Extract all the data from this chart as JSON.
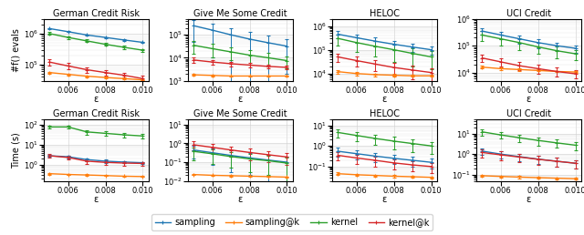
{
  "titles_row1": [
    "German Credit Risk",
    "Give Me Some Credit",
    "HELOC",
    "UCI Credit"
  ],
  "titles_row2": [
    "German Credit Risk",
    "Give Me Some Credit",
    "HELOC",
    "UCI Credit"
  ],
  "ylabel_row1": "#f() evals",
  "ylabel_row2": "Time (s)",
  "xlabel": "ε",
  "x_vals": [
    0.005,
    0.006,
    0.007,
    0.008,
    0.009,
    0.01
  ],
  "x_lim": [
    0.0047,
    0.0103
  ],
  "x_ticks": [
    0.006,
    0.008,
    0.01
  ],
  "colors": {
    "sampling": "#1f77b4",
    "sampling@k": "#ff7f0e",
    "kernel": "#2ca02c",
    "kernel@k": "#d62728"
  },
  "legend_labels": [
    "sampling",
    "sampling@k",
    "kernel",
    "kernel@k"
  ],
  "row1": {
    "GermanCreditRisk": {
      "ylim": [
        30000.0,
        3000000.0
      ],
      "sampling": {
        "y": [
          1450000.0,
          1150000.0,
          900000.0,
          750000.0,
          620000.0,
          520000.0
        ],
        "yerr": [
          60000.0,
          50000.0,
          40000.0,
          30000.0,
          25000.0,
          20000.0
        ]
      },
      "sampling@k": {
        "y": [
          55000.0,
          48000.0,
          42000.0,
          38000.0,
          35000.0,
          32000.0
        ],
        "yerr": [
          4000.0,
          3000.0,
          2500.0,
          2000.0,
          2000.0,
          1500.0
        ]
      },
      "kernel": {
        "y": [
          1000000.0,
          750000.0,
          580000.0,
          450000.0,
          360000.0,
          290000.0
        ],
        "yerr": [
          100000.0,
          80000.0,
          60000.0,
          50000.0,
          40000.0,
          30000.0
        ]
      },
      "kernel@k": {
        "y": [
          120000.0,
          90000.0,
          68000.0,
          55000.0,
          45000.0,
          35000.0
        ],
        "yerr": [
          30000.0,
          20000.0,
          15000.0,
          12000.0,
          10000.0,
          8000.0
        ]
      }
    },
    "GiveMeSomeCredit": {
      "ylim": [
        1000.0,
        500000.0
      ],
      "sampling": {
        "y": [
          250000.0,
          160000.0,
          100000.0,
          65000.0,
          45000.0,
          32000.0
        ],
        "yerr": [
          200000.0,
          150000.0,
          100000.0,
          70000.0,
          50000.0,
          30000.0
        ]
      },
      "sampling@k": {
        "y": [
          1800.0,
          1700.0,
          1600.0,
          1600.0,
          1600.0,
          1600.0
        ],
        "yerr": [
          200.0,
          150.0,
          100.0,
          100.0,
          100.0,
          100.0
        ]
      },
      "kernel": {
        "y": [
          35000.0,
          25000.0,
          18000.0,
          13000.0,
          10000.0,
          7500.0
        ],
        "yerr": [
          20000.0,
          15000.0,
          10000.0,
          8000.0,
          6000.0,
          4000.0
        ]
      },
      "kernel@k": {
        "y": [
          8000.0,
          6500.0,
          5500.0,
          4800.0,
          4200.0,
          3800.0
        ],
        "yerr": [
          2000.0,
          1500.0,
          1200.0,
          1000.0,
          800.0,
          700.0
        ]
      }
    },
    "HELOC": {
      "ylim": [
        5000.0,
        2000000.0
      ],
      "sampling": {
        "y": [
          450000.0,
          320000.0,
          230000.0,
          170000.0,
          130000.0,
          100000.0
        ],
        "yerr": [
          150000.0,
          120000.0,
          90000.0,
          70000.0,
          50000.0,
          40000.0
        ]
      },
      "sampling@k": {
        "y": [
          12000.0,
          10000.0,
          9000.0,
          8500.0,
          8000.0,
          8000.0
        ],
        "yerr": [
          2000.0,
          1500.0,
          1200.0,
          1000.0,
          800.0,
          800.0
        ]
      },
      "kernel": {
        "y": [
          300000.0,
          200000.0,
          140000.0,
          100000.0,
          70000.0,
          50000.0
        ],
        "yerr": [
          150000.0,
          120000.0,
          90000.0,
          70000.0,
          50000.0,
          35000.0
        ]
      },
      "kernel@k": {
        "y": [
          50000.0,
          35000.0,
          25000.0,
          18000.0,
          14000.0,
          11000.0
        ],
        "yerr": [
          20000.0,
          15000.0,
          12000.0,
          10000.0,
          8000.0,
          6000.0
        ]
      }
    },
    "UCICredit": {
      "ylim": [
        5000.0,
        1000000.0
      ],
      "sampling": {
        "y": [
          350000.0,
          250000.0,
          180000.0,
          130000.0,
          100000.0,
          80000.0
        ],
        "yerr": [
          100000.0,
          80000.0,
          60000.0,
          50000.0,
          30000.0,
          25000.0
        ]
      },
      "sampling@k": {
        "y": [
          16000.0,
          14000.0,
          13000.0,
          12000.0,
          11000.0,
          10500.0
        ],
        "yerr": [
          2000.0,
          1500.0,
          1200.0,
          1000.0,
          800.0,
          700.0
        ]
      },
      "kernel": {
        "y": [
          250000.0,
          180000.0,
          130000.0,
          90000.0,
          65000.0,
          50000.0
        ],
        "yerr": [
          100000.0,
          80000.0,
          60000.0,
          40000.0,
          30000.0,
          20000.0
        ]
      },
      "kernel@k": {
        "y": [
          35000.0,
          25000.0,
          18000.0,
          14000.0,
          11000.0,
          9000.0
        ],
        "yerr": [
          10000.0,
          8000.0,
          6000.0,
          5000.0,
          4000.0,
          3000.0
        ]
      }
    }
  },
  "row2": {
    "GermanCreditRisk": {
      "ylim": [
        0.15,
        200
      ],
      "sampling": {
        "y": [
          2.8,
          2.5,
          1.8,
          1.5,
          1.35,
          1.25
        ],
        "yerr": [
          0.4,
          0.35,
          0.3,
          0.25,
          0.2,
          0.15
        ]
      },
      "sampling@k": {
        "y": [
          0.35,
          0.32,
          0.3,
          0.28,
          0.26,
          0.25
        ],
        "yerr": [
          0.04,
          0.03,
          0.025,
          0.02,
          0.018,
          0.015
        ]
      },
      "kernel": {
        "y": [
          80,
          80,
          45,
          38,
          32,
          28
        ],
        "yerr": [
          15,
          15,
          12,
          10,
          8,
          7
        ]
      },
      "kernel@k": {
        "y": [
          2.8,
          2.3,
          1.5,
          1.3,
          1.2,
          1.15
        ],
        "yerr": [
          0.6,
          0.5,
          0.4,
          0.35,
          0.3,
          0.25
        ]
      }
    },
    "GiveMeSomeCredit": {
      "ylim": [
        0.01,
        20
      ],
      "sampling": {
        "y": [
          0.45,
          0.32,
          0.23,
          0.17,
          0.13,
          0.1
        ],
        "yerr": [
          0.3,
          0.25,
          0.2,
          0.15,
          0.12,
          0.1
        ]
      },
      "sampling@k": {
        "y": [
          0.022,
          0.02,
          0.019,
          0.018,
          0.017,
          0.016
        ],
        "yerr": [
          0.002,
          0.002,
          0.0015,
          0.0015,
          0.001,
          0.001
        ]
      },
      "kernel": {
        "y": [
          0.38,
          0.28,
          0.2,
          0.15,
          0.12,
          0.09
        ],
        "yerr": [
          0.25,
          0.2,
          0.15,
          0.12,
          0.1,
          0.08
        ]
      },
      "kernel@k": {
        "y": [
          0.85,
          0.62,
          0.45,
          0.33,
          0.25,
          0.19
        ],
        "yerr": [
          0.4,
          0.3,
          0.25,
          0.2,
          0.15,
          0.12
        ]
      }
    },
    "HELOC": {
      "ylim": [
        0.02,
        20
      ],
      "sampling": {
        "y": [
          0.55,
          0.42,
          0.32,
          0.25,
          0.2,
          0.16
        ],
        "yerr": [
          0.25,
          0.2,
          0.15,
          0.12,
          0.1,
          0.08
        ]
      },
      "sampling@k": {
        "y": [
          0.045,
          0.04,
          0.037,
          0.034,
          0.032,
          0.03
        ],
        "yerr": [
          0.006,
          0.005,
          0.004,
          0.004,
          0.003,
          0.003
        ]
      },
      "kernel": {
        "y": [
          4.5,
          3.2,
          2.3,
          1.7,
          1.3,
          1.0
        ],
        "yerr": [
          2.0,
          1.5,
          1.2,
          1.0,
          0.8,
          0.6
        ]
      },
      "kernel@k": {
        "y": [
          0.35,
          0.26,
          0.2,
          0.15,
          0.12,
          0.1
        ],
        "yerr": [
          0.15,
          0.12,
          0.1,
          0.08,
          0.06,
          0.05
        ]
      }
    },
    "UCICredit": {
      "ylim": [
        0.05,
        50
      ],
      "sampling": {
        "y": [
          1.4,
          1.0,
          0.75,
          0.57,
          0.45,
          0.36
        ],
        "yerr": [
          0.5,
          0.4,
          0.3,
          0.25,
          0.2,
          0.15
        ]
      },
      "sampling@k": {
        "y": [
          0.09,
          0.083,
          0.077,
          0.072,
          0.068,
          0.064
        ],
        "yerr": [
          0.012,
          0.01,
          0.009,
          0.008,
          0.007,
          0.006
        ]
      },
      "kernel": {
        "y": [
          12,
          8.5,
          6.2,
          4.6,
          3.5,
          2.7
        ],
        "yerr": [
          4.0,
          3.0,
          2.5,
          2.0,
          1.5,
          1.2
        ]
      },
      "kernel@k": {
        "y": [
          1.2,
          0.92,
          0.72,
          0.56,
          0.45,
          0.36
        ],
        "yerr": [
          0.5,
          0.4,
          0.3,
          0.25,
          0.2,
          0.15
        ]
      }
    }
  }
}
